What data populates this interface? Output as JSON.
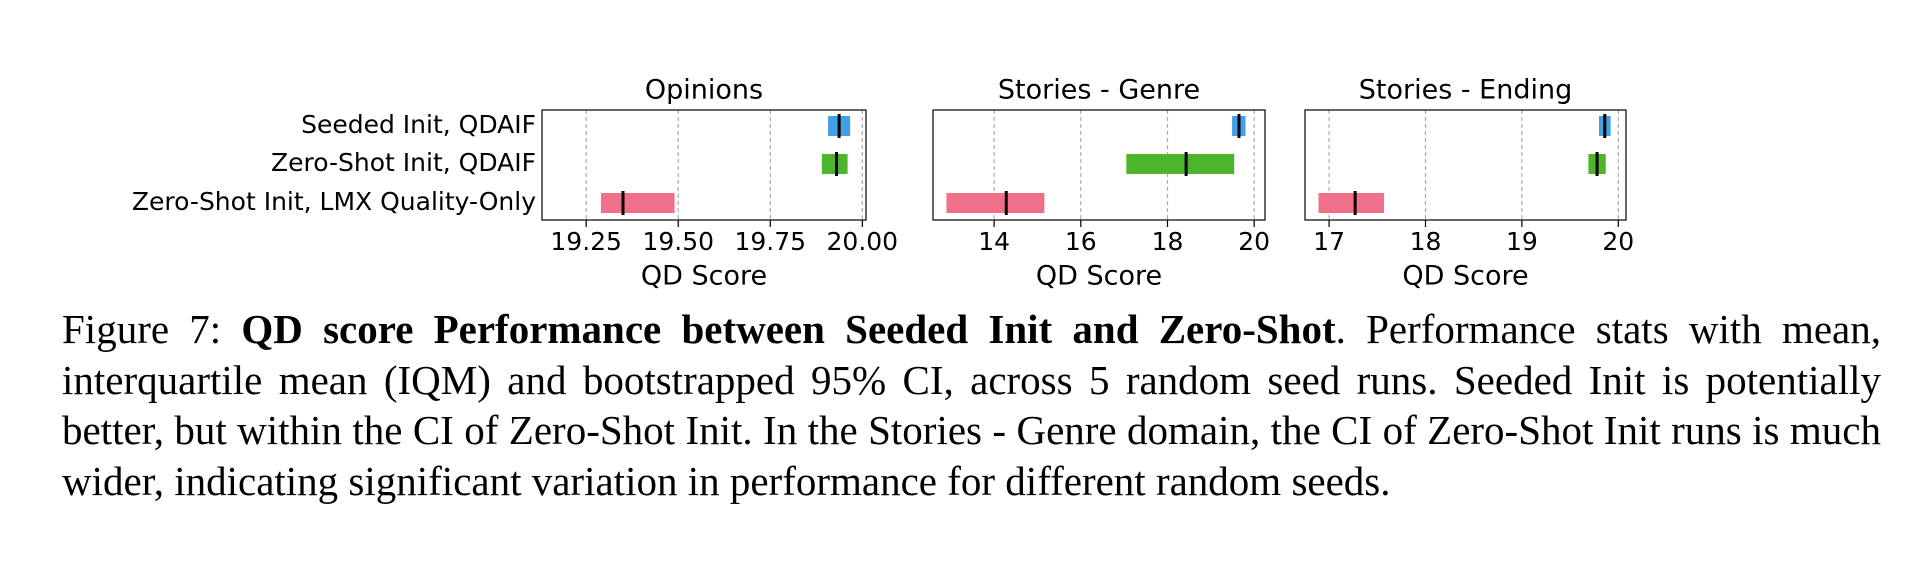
{
  "chart_data": [
    {
      "type": "range",
      "title": "Opinions",
      "xlabel": "QD Score",
      "categories": [
        "Seeded Init, QDAIF",
        "Zero-Shot Init, QDAIF",
        "Zero-Shot Init, LMX Quality-Only"
      ],
      "low": [
        19.907,
        19.89,
        19.29
      ],
      "high": [
        19.967,
        19.96,
        19.49
      ],
      "mean": [
        19.937,
        19.93,
        19.35
      ],
      "colors": [
        "#41a0e6",
        "#4cb52c",
        "#f0708a"
      ],
      "xlim": [
        19.13,
        20.01
      ],
      "xticks": [
        19.25,
        {
          "value": 19.5,
          "label": "19.50"
        },
        19.75,
        {
          "value": 20,
          "label": "20.00"
        }
      ],
      "grid": true
    },
    {
      "type": "range",
      "title": "Stories - Genre",
      "xlabel": "QD Score",
      "low": [
        19.49,
        17.05,
        12.9
      ],
      "high": [
        19.8,
        19.54,
        15.16
      ],
      "mean": [
        19.65,
        18.43,
        14.28
      ],
      "colors": [
        "#41a0e6",
        "#4cb52c",
        "#f0708a"
      ],
      "xlim": [
        12.59,
        20.25
      ],
      "xticks": [
        14,
        16,
        18,
        20
      ],
      "grid": true
    },
    {
      "type": "range",
      "title": "Stories - Ending",
      "xlabel": "QD Score",
      "low": [
        19.8,
        19.69,
        16.89
      ],
      "high": [
        19.92,
        19.87,
        17.57
      ],
      "mean": [
        19.86,
        19.78,
        17.27
      ],
      "colors": [
        "#41a0e6",
        "#4cb52c",
        "#f0708a"
      ],
      "xlim": [
        16.75,
        20.08
      ],
      "xticks": [
        17,
        18,
        19,
        20
      ],
      "grid": true
    }
  ],
  "caption": {
    "label": "Figure 7:",
    "bold": "QD score Performance between Seeded Init and Zero-Shot",
    "text": ". Performance stats with mean, interquartile mean (IQM) and bootstrapped 95% CI, across 5 random seed runs. Seeded Init is potentially better, but within the CI of Zero-Shot Init. In the Stories - Genre domain, the CI of Zero-Shot Init runs is much wider, indicating significant variation in performance for different random seeds."
  }
}
